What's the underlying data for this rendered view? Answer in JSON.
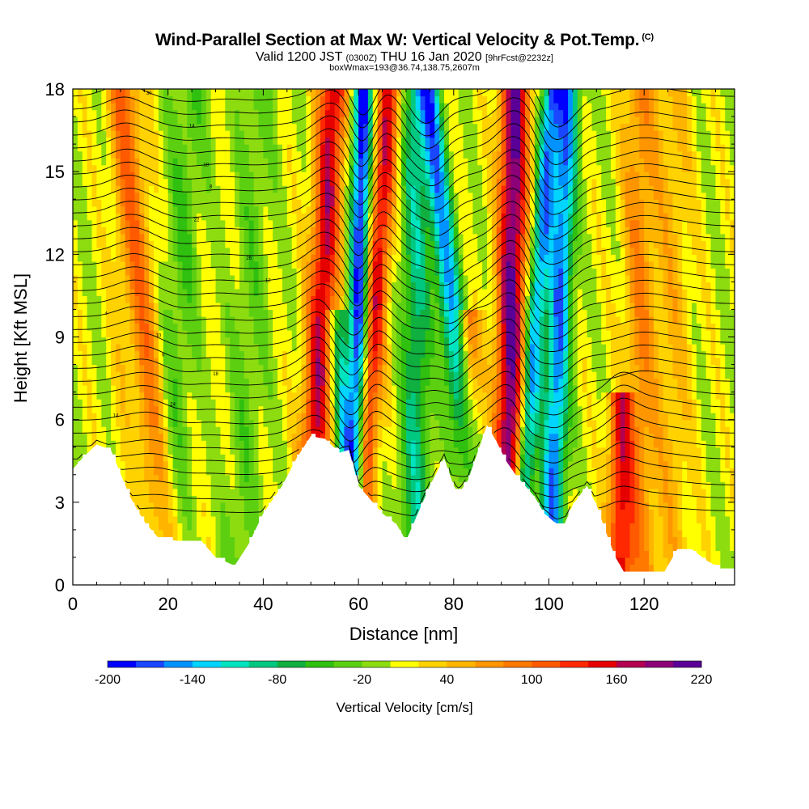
{
  "header": {
    "title": "Wind-Parallel Section at Max W: Vertical Velocity & Pot.Temp.",
    "title_mark": "(C)",
    "valid_prefix": "Valid 1200 JST",
    "valid_utc": "(0300Z)",
    "valid_date": "THU 16 Jan 2020",
    "forecast": "[9hrFcst@2232z]",
    "box_info": "boxWmax=193@36.74,138.75,2607m"
  },
  "chart_data": {
    "type": "heatmap",
    "xlabel": "Distance [nm]",
    "ylabel": "Height [Kft MSL]",
    "xlim": [
      0,
      139
    ],
    "ylim": [
      0,
      18
    ],
    "x_ticks": [
      "0",
      "20",
      "40",
      "60",
      "80",
      "100",
      "120"
    ],
    "y_ticks": [
      "0",
      "3",
      "6",
      "9",
      "12",
      "15",
      "18"
    ],
    "terrain": {
      "distance_nm": [
        0,
        2,
        5,
        8,
        12,
        15,
        18,
        22,
        27,
        30,
        34,
        37,
        40,
        44,
        47,
        50,
        53,
        56,
        58,
        60,
        62,
        65,
        68,
        70,
        73,
        75,
        78,
        80,
        81,
        83,
        85,
        87,
        89,
        91,
        93,
        95,
        97,
        99,
        101,
        103,
        105,
        108,
        110,
        112,
        114,
        116,
        120,
        124,
        127,
        130,
        133,
        136,
        139
      ],
      "height_kft": [
        4.2,
        4.6,
        5.1,
        4.9,
        3.2,
        2.3,
        1.7,
        1.6,
        1.6,
        1.0,
        0.7,
        1.5,
        2.6,
        3.6,
        4.6,
        5.4,
        5.3,
        4.8,
        4.9,
        3.6,
        3.2,
        2.6,
        2.2,
        1.6,
        2.8,
        3.6,
        4.6,
        3.6,
        3.3,
        3.8,
        4.8,
        5.8,
        5.2,
        4.5,
        4.0,
        3.6,
        3.2,
        2.6,
        2.3,
        2.1,
        2.9,
        3.6,
        2.9,
        1.9,
        1.0,
        0.4,
        0.4,
        0.4,
        1.3,
        1.3,
        0.9,
        0.6,
        0.6
      ]
    },
    "velocity_bands": [
      {
        "center_nm": 10,
        "tilt_nm_per_kft": 0.1,
        "width_nm": 2.5,
        "peak_cms": 15,
        "top_kft": 18
      },
      {
        "center_nm": 15,
        "tilt_nm_per_kft": -0.5,
        "width_nm": 3.5,
        "peak_cms": 85,
        "top_kft": 18
      },
      {
        "center_nm": 22,
        "tilt_nm_per_kft": 0.3,
        "width_nm": 4.0,
        "peak_cms": -40,
        "top_kft": 18
      },
      {
        "center_nm": 37,
        "tilt_nm_per_kft": 0.2,
        "width_nm": 4.0,
        "peak_cms": -30,
        "top_kft": 18
      },
      {
        "center_nm": 52,
        "tilt_nm_per_kft": 0.3,
        "width_nm": 3.0,
        "peak_cms": 160,
        "top_kft": 18
      },
      {
        "center_nm": 56,
        "tilt_nm_per_kft": -0.3,
        "width_nm": 2.0,
        "peak_cms": -110,
        "top_kft": 10
      },
      {
        "center_nm": 60,
        "tilt_nm_per_kft": 0.1,
        "width_nm": 2.0,
        "peak_cms": -200,
        "top_kft": 18
      },
      {
        "center_nm": 63,
        "tilt_nm_per_kft": 0.4,
        "width_nm": 2.5,
        "peak_cms": 150,
        "top_kft": 18
      },
      {
        "center_nm": 72,
        "tilt_nm_per_kft": 0.0,
        "width_nm": 3.0,
        "peak_cms": -90,
        "top_kft": 18
      },
      {
        "center_nm": 80,
        "tilt_nm_per_kft": -0.6,
        "width_nm": 2.5,
        "peak_cms": -150,
        "top_kft": 18
      },
      {
        "center_nm": 83,
        "tilt_nm_per_kft": 0.0,
        "width_nm": 2.5,
        "peak_cms": 90,
        "top_kft": 10
      },
      {
        "center_nm": 92,
        "tilt_nm_per_kft": 0.1,
        "width_nm": 3.0,
        "peak_cms": 200,
        "top_kft": 18
      },
      {
        "center_nm": 97,
        "tilt_nm_per_kft": 0.4,
        "width_nm": 2.0,
        "peak_cms": -150,
        "top_kft": 18
      },
      {
        "center_nm": 102,
        "tilt_nm_per_kft": 0.2,
        "width_nm": 2.5,
        "peak_cms": -160,
        "top_kft": 18
      },
      {
        "center_nm": 115,
        "tilt_nm_per_kft": 0.0,
        "width_nm": 2.5,
        "peak_cms": 130,
        "top_kft": 7
      },
      {
        "center_nm": 119,
        "tilt_nm_per_kft": 0.0,
        "width_nm": 3.5,
        "peak_cms": 70,
        "top_kft": 18
      },
      {
        "center_nm": 126,
        "tilt_nm_per_kft": 0.0,
        "width_nm": 4.0,
        "peak_cms": 40,
        "top_kft": 18
      }
    ],
    "colorbar": {
      "title": "Vertical Velocity [cm/s]",
      "min": -200,
      "max": 220,
      "step": 20,
      "labels": [
        "-200",
        "-140",
        "-80",
        "-20",
        "40",
        "100",
        "160",
        "220"
      ],
      "colors": [
        "#0000ff",
        "#1a46ff",
        "#0092ff",
        "#00d4ff",
        "#00e4c0",
        "#00c880",
        "#10b040",
        "#30c010",
        "#5cd010",
        "#8cdc10",
        "#ffff00",
        "#ffd200",
        "#ffb400",
        "#ff9600",
        "#ff7800",
        "#ff5a00",
        "#ff2800",
        "#e60000",
        "#b40050",
        "#8c0078",
        "#5a0096"
      ]
    },
    "isentrope_labels": [
      "30",
      "14",
      "18",
      "8",
      "22",
      "26",
      "12",
      "4",
      "10",
      "6",
      "18",
      "24",
      "14"
    ]
  }
}
